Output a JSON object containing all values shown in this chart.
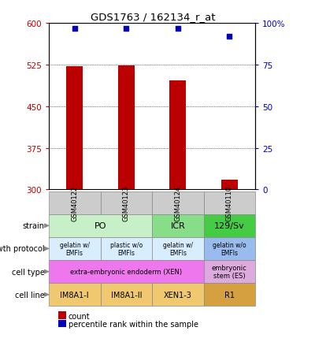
{
  "title": "GDS1763 / 162134_r_at",
  "samples": [
    "GSM40122",
    "GSM40123",
    "GSM40124",
    "GSM40110"
  ],
  "bar_values": [
    522,
    524,
    497,
    318
  ],
  "bar_base": 300,
  "percentile_values": [
    97,
    97,
    97,
    92
  ],
  "ylim": [
    300,
    600
  ],
  "yticks": [
    300,
    375,
    450,
    525,
    600
  ],
  "yticks_right": [
    0,
    25,
    50,
    75,
    100
  ],
  "bar_color": "#bb0000",
  "dot_color": "#0000bb",
  "strain_groups": [
    {
      "label": "PO",
      "start": 0,
      "end": 2,
      "color": "#c8f0c8"
    },
    {
      "label": "ICR",
      "start": 2,
      "end": 3,
      "color": "#88dd88"
    },
    {
      "label": "129/Sv",
      "start": 3,
      "end": 4,
      "color": "#44cc44"
    }
  ],
  "growth_labels": [
    "gelatin w/\nEMFIs",
    "plastic w/o\nEMFIs",
    "gelatin w/\nEMFIs",
    "gelatin w/o\nEMFIs"
  ],
  "growth_colors": [
    "#d8eeff",
    "#d8eeff",
    "#d8eeff",
    "#99bbee"
  ],
  "cell_type_groups": [
    {
      "label": "extra-embryonic endoderm (XEN)",
      "start": 0,
      "end": 3,
      "color": "#ee77ee"
    },
    {
      "label": "embryonic\nstem (ES)",
      "start": 3,
      "end": 4,
      "color": "#ddaadd"
    }
  ],
  "cell_line_labels": [
    "IM8A1-I",
    "IM8A1-II",
    "XEN1-3",
    "R1"
  ],
  "cell_line_colors": [
    "#f0c870",
    "#f0c870",
    "#f0c870",
    "#d4a040"
  ],
  "sample_bg_color": "#cccccc",
  "row_labels": [
    "strain",
    "growth protocol",
    "cell type",
    "cell line"
  ],
  "legend_count_color": "#bb0000",
  "legend_pct_color": "#0000bb"
}
